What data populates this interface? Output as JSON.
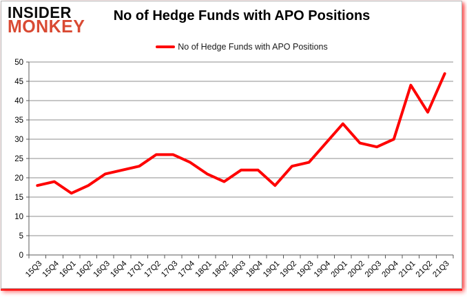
{
  "header": {
    "logo": {
      "line1": "INSIDER",
      "line2": "MONKEY"
    },
    "title": "No of Hedge Funds with APO Positions"
  },
  "legend": {
    "label": "No of Hedge Funds with APO Positions"
  },
  "colors": {
    "series_line": "#fe0000",
    "logo_insider": "#0d0d0d",
    "logo_monkey": "#d94a33",
    "gridline": "#8c8c8c",
    "axis": "#595959",
    "tick_label": "#000000",
    "edge_glow": "#fa0c0c"
  },
  "chart_data": {
    "type": "line",
    "title": "No of Hedge Funds with APO Positions",
    "categories": [
      "15Q3",
      "15Q4",
      "16Q1",
      "16Q2",
      "16Q3",
      "16Q4",
      "17Q1",
      "17Q2",
      "17Q3",
      "17Q4",
      "18Q1",
      "18Q2",
      "18Q3",
      "18Q4",
      "19Q1",
      "19Q2",
      "19Q3",
      "19Q4",
      "20Q1",
      "20Q2",
      "20Q3",
      "20Q4",
      "21Q1",
      "21Q2",
      "21Q3"
    ],
    "series": [
      {
        "name": "No of Hedge Funds with APO Positions",
        "color": "#fe0000",
        "values": [
          18,
          19,
          16,
          18,
          21,
          22,
          23,
          26,
          26,
          24,
          21,
          19,
          22,
          22,
          18,
          23,
          24,
          29,
          34,
          29,
          28,
          30,
          44,
          37,
          47
        ]
      }
    ],
    "xlabel": "",
    "ylabel": "",
    "ylim": [
      0,
      50
    ],
    "yticks": [
      0,
      5,
      10,
      15,
      20,
      25,
      30,
      35,
      40,
      45,
      50
    ],
    "grid": "horizontal",
    "legend_position": "top-center"
  }
}
